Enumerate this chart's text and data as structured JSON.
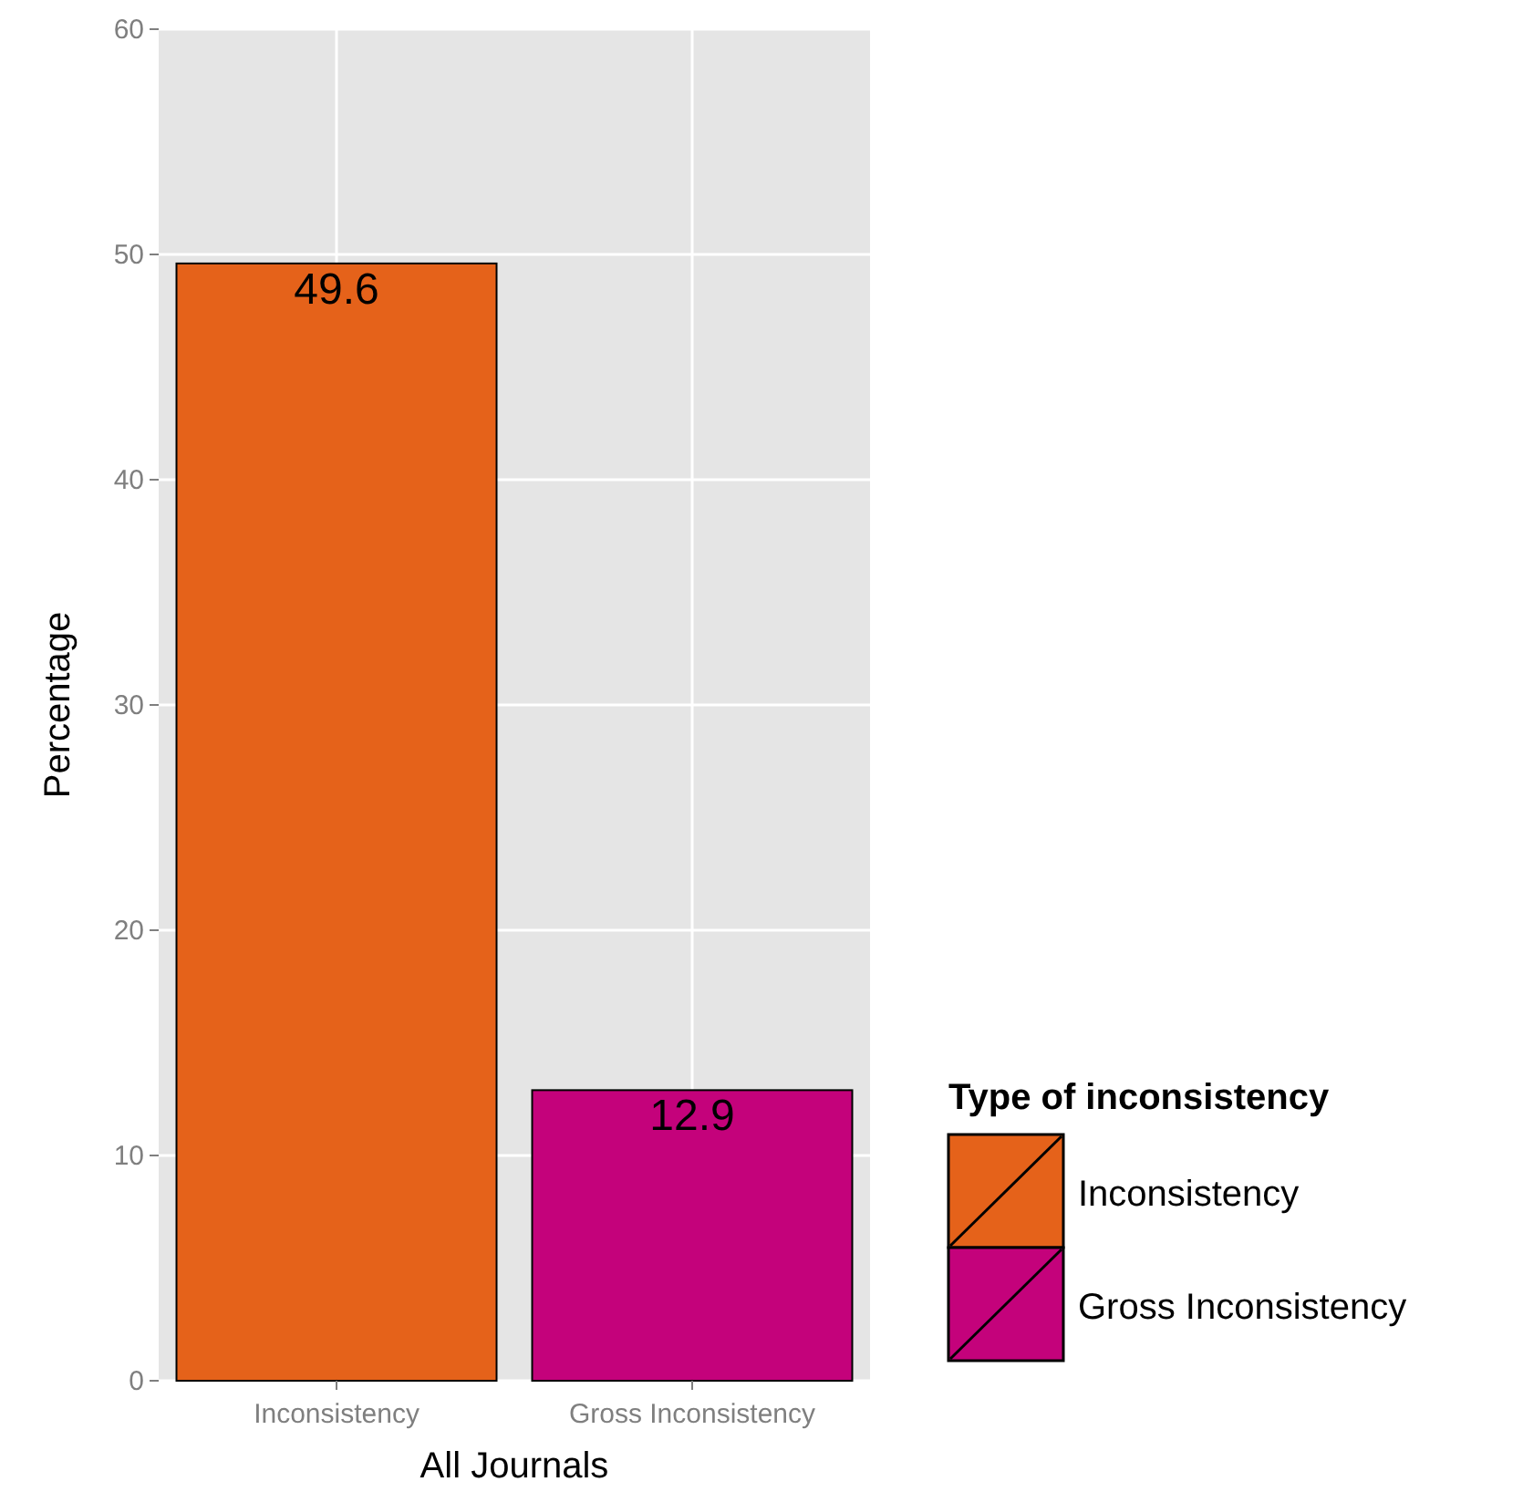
{
  "chart_data": {
    "type": "bar",
    "xlabel": "All Journals",
    "ylabel": "Percentage",
    "legend_title": "Type of inconsistency",
    "categories": [
      "Inconsistency",
      "Gross Inconsistency"
    ],
    "series": [
      {
        "name": "Inconsistency",
        "color": "#e5621a",
        "values": [
          49.6,
          null
        ]
      },
      {
        "name": "Gross Inconsistency",
        "color": "#c4027b",
        "values": [
          null,
          12.9
        ]
      }
    ],
    "ylim": [
      0,
      60
    ],
    "yticks": [
      0,
      10,
      20,
      30,
      40,
      50,
      60
    ],
    "grid": true,
    "legend": "right",
    "data_labels": true
  }
}
